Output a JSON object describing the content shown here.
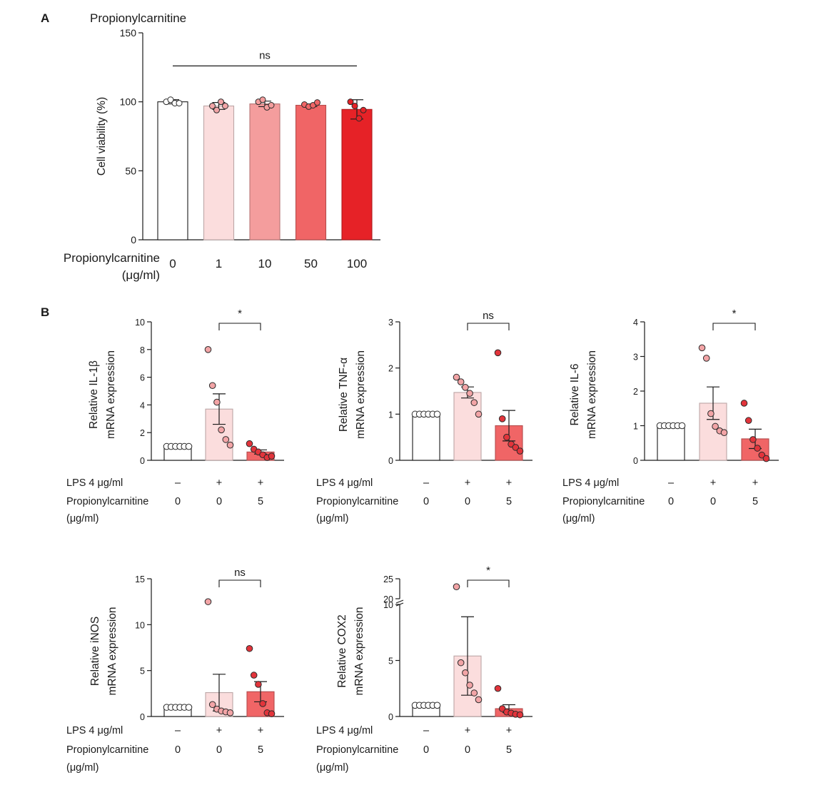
{
  "panels": {
    "a": "A",
    "b": "B"
  },
  "chart_data": [
    {
      "id": "A",
      "type": "bar",
      "title": "Propionylcarnitine",
      "ylabel": "Cell viability (%)",
      "xlabel_lines": [
        "Propionylcarnitine",
        "(μg/ml)"
      ],
      "categories": [
        "0",
        "1",
        "10",
        "50",
        "100"
      ],
      "values": [
        100,
        97,
        98.5,
        97.5,
        94.5
      ],
      "errors": [
        1.5,
        2.5,
        2,
        1,
        7
      ],
      "points": [
        [
          100,
          101.5,
          99,
          99
        ],
        [
          97,
          94,
          100,
          97
        ],
        [
          100,
          101.5,
          96,
          97.5
        ],
        [
          98,
          96.5,
          97.5,
          99.5
        ],
        [
          100,
          97,
          88,
          94
        ]
      ],
      "bar_colors": [
        "#ffffff",
        "#fbdddd",
        "#f49d9d",
        "#f06566",
        "#e62227"
      ],
      "ylim": [
        0,
        150
      ],
      "yticks": [
        0,
        50,
        100,
        150
      ],
      "significance": {
        "label": "ns",
        "span": [
          0,
          4
        ]
      }
    },
    {
      "id": "IL1b",
      "type": "bar",
      "ylabel_lines": [
        "Relative IL-1β",
        "mRNA expression"
      ],
      "conditions": {
        "rows": [
          {
            "label": "LPS 4 μg/ml",
            "values": [
              "–",
              "+",
              "+"
            ]
          },
          {
            "label": "Propionylcarnitine",
            "values": [
              "0",
              "0",
              "5"
            ]
          },
          {
            "label": "(μg/ml)",
            "values": [
              "",
              "",
              ""
            ]
          }
        ]
      },
      "values": [
        1,
        3.7,
        0.6
      ],
      "errors": [
        0,
        1.1,
        0.15
      ],
      "points": [
        [
          1,
          1,
          1,
          1,
          1,
          1
        ],
        [
          8,
          5.4,
          4.2,
          2.2,
          1.5,
          1.1
        ],
        [
          1.2,
          0.8,
          0.6,
          0.4,
          0.2,
          0.3
        ]
      ],
      "bar_colors": [
        "#ffffff",
        "#fbdddd",
        "#f06566"
      ],
      "ylim": [
        0,
        10
      ],
      "yticks": [
        0,
        2,
        4,
        6,
        8,
        10
      ],
      "significance": {
        "label": "*",
        "span": [
          1,
          2
        ]
      }
    },
    {
      "id": "TNFa",
      "type": "bar",
      "ylabel_lines": [
        "Relative TNF-α",
        "mRNA expression"
      ],
      "conditions": {
        "rows": [
          {
            "label": "LPS 4 μg/ml",
            "values": [
              "–",
              "+",
              "+"
            ]
          },
          {
            "label": "Propionylcarnitine",
            "values": [
              "0",
              "0",
              "5"
            ]
          },
          {
            "label": "(μg/ml)",
            "values": [
              "",
              "",
              ""
            ]
          }
        ]
      },
      "values": [
        1,
        1.47,
        0.75
      ],
      "errors": [
        0,
        0.12,
        0.33
      ],
      "points": [
        [
          1,
          1,
          1,
          1,
          1,
          1
        ],
        [
          1.8,
          1.7,
          1.58,
          1.45,
          1.25,
          1.0
        ],
        [
          2.33,
          0.9,
          0.5,
          0.35,
          0.28,
          0.2
        ]
      ],
      "bar_colors": [
        "#ffffff",
        "#fbdddd",
        "#f06566"
      ],
      "ylim": [
        0,
        3
      ],
      "yticks": [
        0,
        1,
        2,
        3
      ],
      "significance": {
        "label": "ns",
        "span": [
          1,
          2
        ]
      }
    },
    {
      "id": "IL6",
      "type": "bar",
      "ylabel_lines": [
        "Relative IL-6",
        "mRNA expression"
      ],
      "conditions": {
        "rows": [
          {
            "label": "LPS 4 μg/ml",
            "values": [
              "–",
              "+",
              "+"
            ]
          },
          {
            "label": "Propionylcarnitine",
            "values": [
              "0",
              "0",
              "5"
            ]
          },
          {
            "label": "(μg/ml)",
            "values": [
              "",
              "",
              ""
            ]
          }
        ]
      },
      "values": [
        1,
        1.65,
        0.62
      ],
      "errors": [
        0,
        0.47,
        0.28
      ],
      "points": [
        [
          1,
          1,
          1,
          1,
          1,
          1
        ],
        [
          3.25,
          2.95,
          1.35,
          0.98,
          0.85,
          0.8
        ],
        [
          1.65,
          1.15,
          0.6,
          0.35,
          0.15,
          0.05
        ]
      ],
      "bar_colors": [
        "#ffffff",
        "#fbdddd",
        "#f06566"
      ],
      "ylim": [
        0,
        4
      ],
      "yticks": [
        0,
        1,
        2,
        3,
        4
      ],
      "significance": {
        "label": "*",
        "span": [
          1,
          2
        ]
      }
    },
    {
      "id": "iNOS",
      "type": "bar",
      "ylabel_lines": [
        "Relative iNOS",
        "mRNA expression"
      ],
      "conditions": {
        "rows": [
          {
            "label": "LPS 4 μg/ml",
            "values": [
              "–",
              "+",
              "+"
            ]
          },
          {
            "label": "Propionylcarnitine",
            "values": [
              "0",
              "0",
              "5"
            ]
          },
          {
            "label": "(μg/ml)",
            "values": [
              "",
              "",
              ""
            ]
          }
        ]
      },
      "values": [
        1,
        2.6,
        2.7
      ],
      "errors": [
        0,
        2.0,
        1.1
      ],
      "points": [
        [
          1,
          1,
          1,
          1,
          1,
          1
        ],
        [
          12.5,
          1.3,
          0.8,
          0.6,
          0.5,
          0.4
        ],
        [
          7.4,
          4.5,
          3.5,
          1.4,
          0.4,
          0.3
        ]
      ],
      "bar_colors": [
        "#ffffff",
        "#fbdddd",
        "#f06566"
      ],
      "ylim": [
        0,
        15
      ],
      "yticks": [
        0,
        5,
        10,
        15
      ],
      "significance": {
        "label": "ns",
        "span": [
          1,
          2
        ]
      }
    },
    {
      "id": "COX2",
      "type": "bar",
      "ylabel_lines": [
        "Relative COX2",
        "mRNA expression"
      ],
      "conditions": {
        "rows": [
          {
            "label": "LPS 4 μg/ml",
            "values": [
              "–",
              "+",
              "+"
            ]
          },
          {
            "label": "Propionylcarnitine",
            "values": [
              "0",
              "0",
              "5"
            ]
          },
          {
            "label": "(μg/ml)",
            "values": [
              "",
              "",
              ""
            ]
          }
        ]
      },
      "values": [
        1,
        5.4,
        0.7
      ],
      "errors": [
        0,
        3.5,
        0.35
      ],
      "points": [
        [
          1,
          1,
          1,
          1,
          1,
          1
        ],
        [
          23,
          4.8,
          3.9,
          2.8,
          2.1,
          1.5
        ],
        [
          2.5,
          0.7,
          0.4,
          0.3,
          0.2,
          0.15
        ]
      ],
      "bar_colors": [
        "#ffffff",
        "#fbdddd",
        "#f06566"
      ],
      "ylim": [
        0,
        25
      ],
      "axis_break": [
        10,
        20
      ],
      "yticks": [
        0,
        5,
        10,
        20,
        25
      ],
      "significance": {
        "label": "*",
        "span": [
          1,
          2
        ]
      }
    }
  ]
}
